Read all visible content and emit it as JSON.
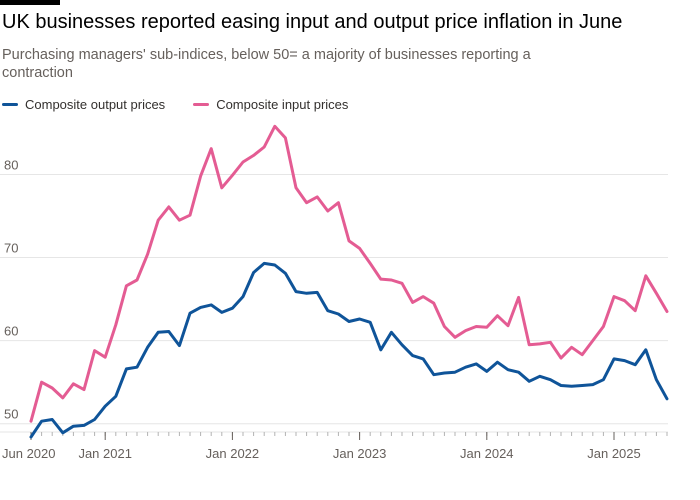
{
  "header": {
    "title": "UK businesses reported easing input and output price inflation in June",
    "subtitle": "Purchasing managers' sub-indices, below 50= a majority of businesses reporting a contraction"
  },
  "colors": {
    "output": "#0f5499",
    "input": "#e45c93",
    "grid": "#e6e6e6",
    "axis": "#66605c"
  },
  "chart_data": {
    "type": "line",
    "title": "UK businesses reported easing input and output price inflation in June",
    "subtitle": "Purchasing managers' sub-indices, below 50= a majority of businesses reporting a contraction",
    "xlabel": "",
    "ylabel": "",
    "ylim": [
      49,
      88
    ],
    "yticks": [
      50,
      60,
      70,
      80
    ],
    "grid": true,
    "legend_position": "top-left",
    "x_start": "2020-06",
    "x_end": "2025-06",
    "x_tick_labels": [
      {
        "x": "2020-06",
        "label": "Jun 2020"
      },
      {
        "x": "2021-01",
        "label": "Jan 2021"
      },
      {
        "x": "2022-01",
        "label": "Jan 2022"
      },
      {
        "x": "2023-01",
        "label": "Jan 2023"
      },
      {
        "x": "2024-01",
        "label": "Jan 2024"
      },
      {
        "x": "2025-01",
        "label": "Jan 2025"
      }
    ],
    "x": [
      "2020-06",
      "2020-07",
      "2020-08",
      "2020-09",
      "2020-10",
      "2020-11",
      "2020-12",
      "2021-01",
      "2021-02",
      "2021-03",
      "2021-04",
      "2021-05",
      "2021-06",
      "2021-07",
      "2021-08",
      "2021-09",
      "2021-10",
      "2021-11",
      "2021-12",
      "2022-01",
      "2022-02",
      "2022-03",
      "2022-04",
      "2022-05",
      "2022-06",
      "2022-07",
      "2022-08",
      "2022-09",
      "2022-10",
      "2022-11",
      "2022-12",
      "2023-01",
      "2023-02",
      "2023-03",
      "2023-04",
      "2023-05",
      "2023-06",
      "2023-07",
      "2023-08",
      "2023-09",
      "2023-10",
      "2023-11",
      "2023-12",
      "2024-01",
      "2024-02",
      "2024-03",
      "2024-04",
      "2024-05",
      "2024-06",
      "2024-07",
      "2024-08",
      "2024-09",
      "2024-10",
      "2024-11",
      "2024-12",
      "2025-01",
      "2025-02",
      "2025-03",
      "2025-04",
      "2025-05",
      "2025-06"
    ],
    "series": [
      {
        "name": "Composite output prices",
        "color": "#0f5499",
        "values": [
          48.4,
          50.3,
          50.5,
          48.9,
          49.7,
          49.8,
          50.5,
          52.1,
          53.3,
          56.6,
          56.8,
          59.2,
          61.0,
          61.1,
          59.4,
          63.3,
          64.0,
          64.3,
          63.4,
          63.9,
          65.3,
          68.2,
          69.3,
          69.1,
          68.1,
          65.9,
          65.7,
          65.8,
          63.6,
          63.2,
          62.3,
          62.6,
          62.2,
          58.9,
          61.0,
          59.5,
          58.2,
          57.8,
          55.9,
          56.1,
          56.2,
          56.8,
          57.2,
          56.3,
          57.4,
          56.5,
          56.2,
          55.1,
          55.7,
          55.3,
          54.6,
          54.5,
          54.6,
          54.7,
          55.3,
          57.8,
          57.6,
          57.1,
          58.9,
          55.3,
          53.0
        ]
      },
      {
        "name": "Composite input prices",
        "color": "#e45c93",
        "values": [
          50.3,
          55.0,
          54.3,
          53.1,
          54.8,
          54.1,
          58.8,
          58.0,
          61.9,
          66.6,
          67.3,
          70.4,
          74.5,
          76.1,
          74.5,
          75.1,
          79.8,
          83.1,
          78.4,
          79.9,
          81.5,
          82.3,
          83.3,
          85.8,
          84.4,
          78.4,
          76.6,
          77.3,
          75.6,
          76.6,
          72.0,
          71.1,
          69.3,
          67.4,
          67.3,
          66.9,
          64.6,
          65.3,
          64.5,
          61.7,
          60.4,
          61.2,
          61.7,
          61.6,
          63.0,
          61.8,
          65.2,
          59.5,
          59.6,
          59.8,
          57.9,
          59.2,
          58.3,
          60.0,
          61.7,
          65.3,
          64.8,
          63.6,
          67.8,
          65.7,
          63.5
        ]
      }
    ]
  }
}
